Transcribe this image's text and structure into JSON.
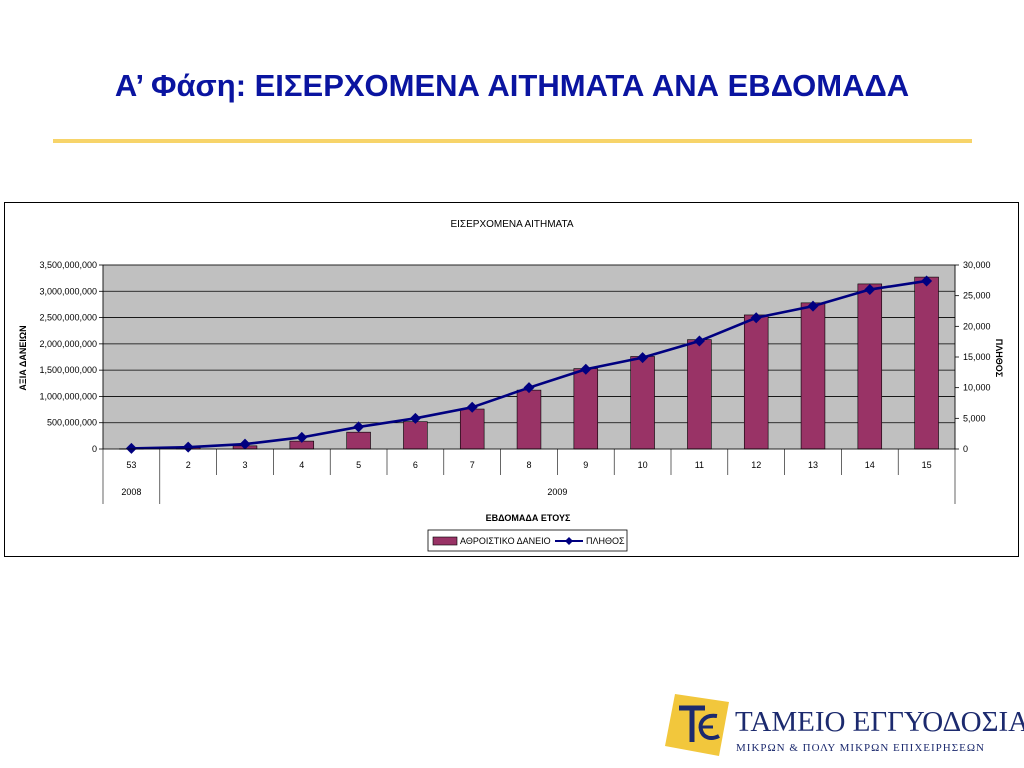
{
  "slide": {
    "title": "Α’ Φάση: ΕΙΣΕΡΧΟΜΕΝΑ ΑΙΤΗΜΑΤΑ ΑΝΑ ΕΒΔΟΜΑΔΑ"
  },
  "chart_data": {
    "type": "bar",
    "title": "ΕΙΣΕΡΧΟΜΕΝΑ ΑΙΤΗΜΑΤΑ",
    "xlabel": "ΕΒΔΟΜΑΔΑ ΕΤΟΥΣ",
    "ylabel": "ΑΞΙΑ ΔΑΝΕΙΩΝ",
    "y2label": "ΠΛΗΘΟΣ",
    "categories": [
      "53",
      "2",
      "3",
      "4",
      "5",
      "6",
      "7",
      "8",
      "9",
      "10",
      "11",
      "12",
      "13",
      "14",
      "15"
    ],
    "year_groups": [
      {
        "label": "2008",
        "span": 1
      },
      {
        "label": "2009",
        "span": 14
      }
    ],
    "ylim": [
      0,
      3500000000
    ],
    "y_ticks": [
      "0",
      "500,000,000",
      "1,000,000,000",
      "1,500,000,000",
      "2,000,000,000",
      "2,500,000,000",
      "3,000,000,000",
      "3,500,000,000"
    ],
    "y2lim": [
      0,
      30000
    ],
    "y2_ticks": [
      "0",
      "5,000",
      "10,000",
      "15,000",
      "20,000",
      "25,000",
      "30,000"
    ],
    "series": [
      {
        "name": "ΑΘΡΟΙΣΤΙΚΟ ΔΑΝΕΙΟ",
        "type": "bar",
        "axis": "left",
        "color": "#993366",
        "values": [
          5000000,
          25000000,
          60000000,
          150000000,
          320000000,
          520000000,
          760000000,
          1120000000,
          1530000000,
          1760000000,
          2080000000,
          2550000000,
          2780000000,
          3140000000,
          3270000000
        ]
      },
      {
        "name": "ΠΛΗΘΟΣ",
        "type": "line",
        "axis": "right",
        "color": "#000080",
        "values": [
          100,
          300,
          800,
          1900,
          3600,
          5000,
          6800,
          10000,
          13000,
          14900,
          17600,
          21400,
          23300,
          26000,
          27400
        ]
      }
    ],
    "grid": true,
    "plot_background": "#c0c0c0",
    "legend_position": "bottom"
  },
  "logo": {
    "name": "ΤΑΜΕΙΟ ΕΓΓΥΟΔΟΣΙΑΣ",
    "subtitle": "ΜΙΚΡΩΝ & ΠΟΛΥ ΜΙΚΡΩΝ ΕΠΙΧΕΙΡΗΣΕΩΝ",
    "mark_color": "#f2c73c",
    "text_color": "#1c2a6e"
  }
}
